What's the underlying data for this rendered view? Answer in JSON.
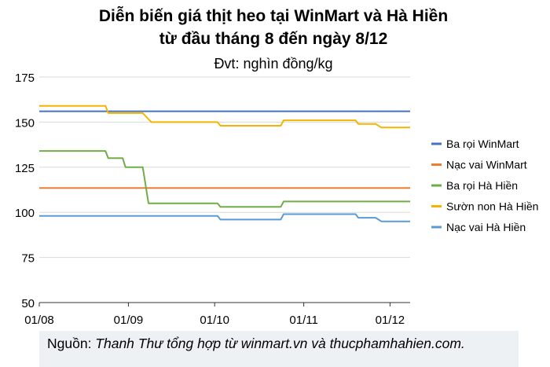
{
  "chart_data": {
    "type": "line",
    "title": "Diễn biến giá thịt heo tại WinMart và Hà Hiền",
    "subtitle": "từ đầu tháng 8 đến ngày 8/12",
    "unit_label": "Đvt: nghìn đồng/kg",
    "x_ticks": [
      "01/08",
      "01/09",
      "01/10",
      "01/11",
      "01/12"
    ],
    "x_range": [
      "2021-08-01",
      "2021-12-08"
    ],
    "y_ticks": [
      50,
      75,
      100,
      125,
      150,
      175
    ],
    "ylim": [
      50,
      175
    ],
    "grid": true,
    "legend_position": "right",
    "series": [
      {
        "name": "Ba rọi WinMart",
        "color": "#4472c4",
        "points": [
          [
            "2021-08-01",
            156
          ],
          [
            "2021-12-08",
            156
          ]
        ]
      },
      {
        "name": "Nạc vai WinMart",
        "color": "#ed7d31",
        "points": [
          [
            "2021-08-01",
            113.5
          ],
          [
            "2021-12-08",
            113.5
          ]
        ]
      },
      {
        "name": "Ba rọi Hà Hiền",
        "color": "#70ad47",
        "points": [
          [
            "2021-08-01",
            134
          ],
          [
            "2021-08-24",
            134
          ],
          [
            "2021-08-25",
            130
          ],
          [
            "2021-08-30",
            130
          ],
          [
            "2021-08-31",
            125
          ],
          [
            "2021-09-06",
            125
          ],
          [
            "2021-09-08",
            105
          ],
          [
            "2021-10-02",
            105
          ],
          [
            "2021-10-03",
            103
          ],
          [
            "2021-10-24",
            103
          ],
          [
            "2021-10-25",
            106
          ],
          [
            "2021-12-08",
            106
          ]
        ]
      },
      {
        "name": "Sườn non Hà Hiền",
        "color": "#f4b400",
        "points": [
          [
            "2021-08-01",
            159
          ],
          [
            "2021-08-24",
            159
          ],
          [
            "2021-08-25",
            155
          ],
          [
            "2021-09-06",
            155
          ],
          [
            "2021-09-09",
            150
          ],
          [
            "2021-10-02",
            150
          ],
          [
            "2021-10-03",
            148
          ],
          [
            "2021-10-24",
            148
          ],
          [
            "2021-10-25",
            151
          ],
          [
            "2021-11-19",
            151
          ],
          [
            "2021-11-20",
            149
          ],
          [
            "2021-11-26",
            149
          ],
          [
            "2021-11-28",
            147
          ],
          [
            "2021-12-08",
            147
          ]
        ]
      },
      {
        "name": "Nạc vai Hà Hiền",
        "color": "#5b9bd5",
        "points": [
          [
            "2021-08-01",
            98
          ],
          [
            "2021-10-02",
            98
          ],
          [
            "2021-10-03",
            96
          ],
          [
            "2021-10-24",
            96
          ],
          [
            "2021-10-25",
            99
          ],
          [
            "2021-11-19",
            99
          ],
          [
            "2021-11-20",
            97
          ],
          [
            "2021-11-26",
            97
          ],
          [
            "2021-11-28",
            95
          ],
          [
            "2021-12-08",
            95
          ]
        ]
      }
    ]
  },
  "footer": {
    "prefix": "Nguồn: ",
    "source": "Thanh Thư tổng hợp từ winmart.vn và thucphamhahien.com."
  }
}
